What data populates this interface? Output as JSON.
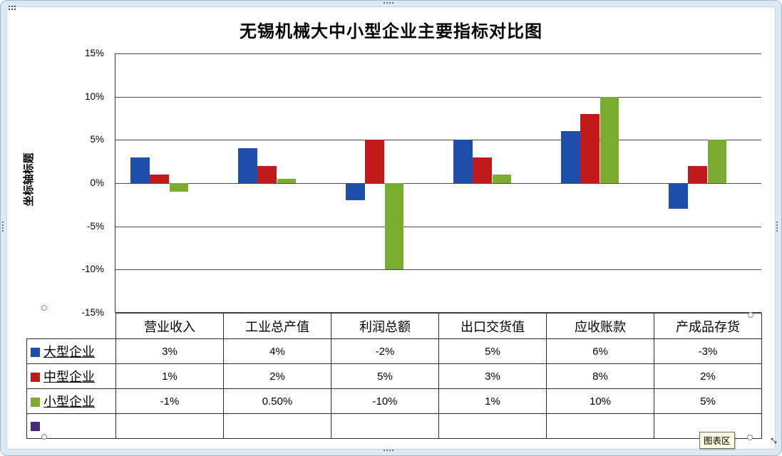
{
  "chart_data": {
    "type": "bar",
    "title": "无锡机械大中小型企业主要指标对比图",
    "ylabel": "坐标轴标题",
    "xlabel": "",
    "ylim": [
      -15,
      15
    ],
    "ytick_values": [
      15,
      10,
      5,
      0,
      -5,
      -10,
      -15
    ],
    "ytick_labels": [
      "15%",
      "10%",
      "5%",
      "0%",
      "-5%",
      "-10%",
      "-15%"
    ],
    "grid": true,
    "legend_position": "data-table-left",
    "categories": [
      "营业收入",
      "工业总产值",
      "利润总额",
      "出口交货值",
      "应收账款",
      "产成品存货"
    ],
    "series": [
      {
        "name": "大型企业",
        "color": "#1E4EAC",
        "values": [
          3,
          4,
          -2,
          5,
          6,
          -3
        ],
        "table_labels": [
          "3%",
          "4%",
          "-2%",
          "5%",
          "6%",
          "-3%"
        ]
      },
      {
        "name": "中型企业",
        "color": "#C01A1A",
        "values": [
          1,
          2,
          5,
          3,
          8,
          2
        ],
        "table_labels": [
          "1%",
          "2%",
          "5%",
          "3%",
          "8%",
          "2%"
        ]
      },
      {
        "name": "小型企业",
        "color": "#7AAD2F",
        "values": [
          -1,
          0.5,
          -10,
          1,
          10,
          5
        ],
        "table_labels": [
          "-1%",
          "0.50%",
          "-10%",
          "1%",
          "10%",
          "5%"
        ]
      },
      {
        "name": "",
        "color": "#46287D",
        "values": [
          null,
          null,
          null,
          null,
          null,
          null
        ],
        "table_labels": [
          "",
          "",
          "",
          "",
          "",
          ""
        ]
      }
    ]
  },
  "tooltip": {
    "chart_area_label": "图表区"
  },
  "icons": {
    "resize_diagonal": "↔"
  },
  "colors": {
    "frame_band": "#DEEAF3",
    "gridline": "#4A4A4A",
    "tooltip_bg": "#FFFFE1",
    "series_blue": "#1E4EAC",
    "series_red": "#C01A1A",
    "series_green": "#7AAD2F",
    "series_purple": "#46287D"
  }
}
